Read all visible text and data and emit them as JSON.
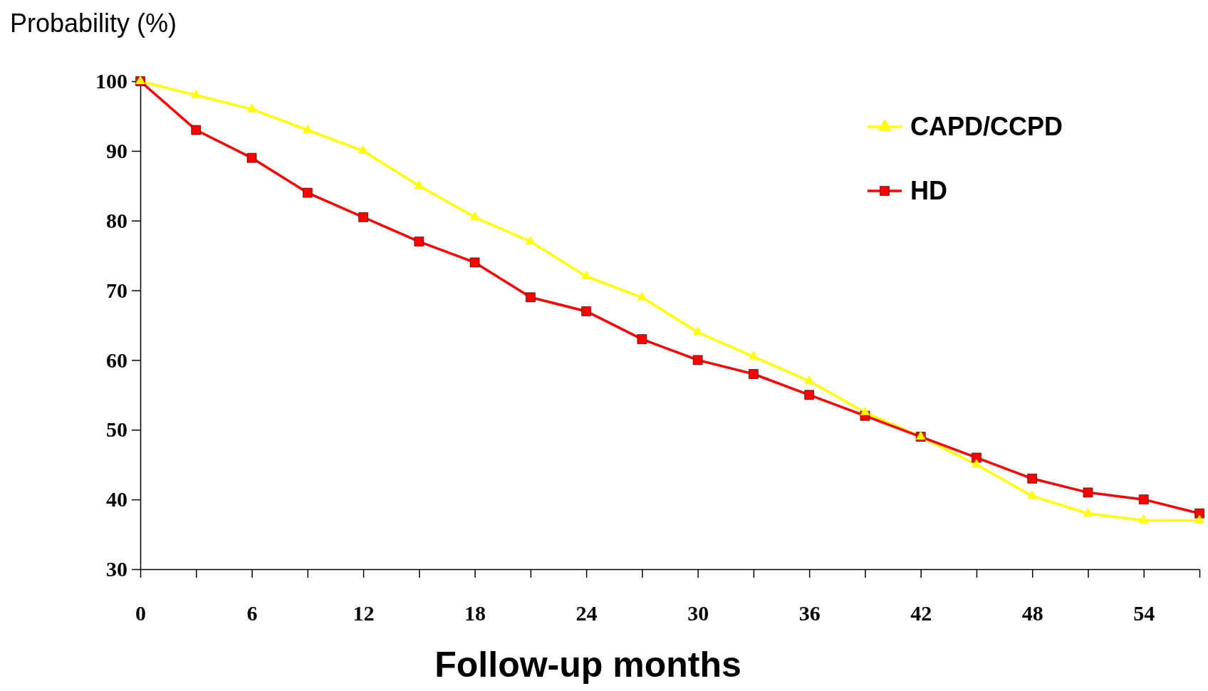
{
  "chart_data": {
    "type": "line",
    "ylabel": "Probability (%)",
    "xlabel": "Follow-up months",
    "x": [
      0,
      3,
      6,
      9,
      12,
      15,
      18,
      21,
      24,
      27,
      30,
      33,
      36,
      39,
      42,
      45,
      48,
      51,
      54,
      57
    ],
    "series": [
      {
        "name": "CAPD/CCPD",
        "color": "#ffff00",
        "marker": "triangle",
        "values": [
          100,
          98,
          96,
          93,
          90,
          85,
          80.5,
          77,
          72,
          69,
          64,
          60.5,
          57,
          52.5,
          49,
          45,
          40.5,
          38,
          37,
          37
        ]
      },
      {
        "name": "HD",
        "color": "#ff0000",
        "marker": "square",
        "values": [
          100,
          93,
          89,
          84,
          80.5,
          77,
          74,
          69,
          67,
          63,
          60,
          58,
          55,
          52,
          49,
          46,
          43,
          41,
          40,
          38
        ]
      }
    ],
    "xlim": [
      0,
      57
    ],
    "xticks": [
      0,
      {
        "value": 3,
        "label": null
      },
      6,
      {
        "value": 9,
        "label": null
      },
      12,
      {
        "value": 15,
        "label": null
      },
      18,
      {
        "value": 21,
        "label": null
      },
      24,
      {
        "value": 27,
        "label": null
      },
      30,
      {
        "value": 33,
        "label": null
      },
      36,
      {
        "value": 39,
        "label": null
      },
      42,
      {
        "value": 45,
        "label": null
      },
      48,
      {
        "value": 51,
        "label": null
      },
      54,
      {
        "value": 57,
        "label": null
      }
    ],
    "ylim": [
      30,
      100
    ],
    "yticks": [
      30,
      40,
      50,
      60,
      70,
      80,
      90,
      100
    ],
    "grid": false,
    "legend": "top right",
    "line_style": "solid"
  }
}
